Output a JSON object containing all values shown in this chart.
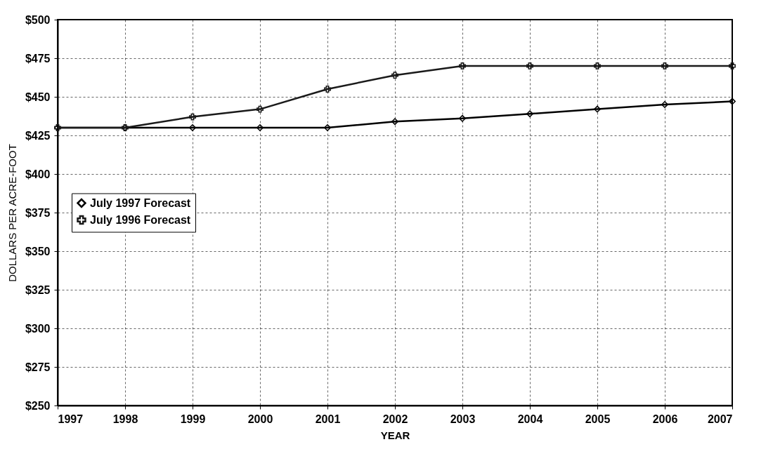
{
  "chart_data": {
    "type": "line",
    "xlabel": "YEAR",
    "ylabel": "DOLLARS PER ACRE-FOOT",
    "x": [
      1997,
      1998,
      1999,
      2000,
      2001,
      2002,
      2003,
      2004,
      2005,
      2006,
      2007
    ],
    "series": [
      {
        "name": "July 1997 Forecast",
        "color": "#000000",
        "marker": "diamond",
        "values": [
          430,
          430,
          430,
          430,
          430,
          434,
          436,
          439,
          442,
          445,
          447
        ]
      },
      {
        "name": "July 1996 Forecast",
        "color": "#1a1a1a",
        "marker": "cross",
        "values": [
          430,
          430,
          437,
          442,
          455,
          464,
          470,
          470,
          470,
          470,
          470
        ]
      }
    ],
    "xlim": [
      1997,
      2007
    ],
    "xticks": [
      1997,
      1998,
      1999,
      2000,
      2001,
      2002,
      2003,
      2004,
      2005,
      2006,
      2007
    ],
    "ylim": [
      250,
      500
    ],
    "yticks": [
      {
        "value": 250,
        "label": "$250"
      },
      {
        "value": 275,
        "label": "$275"
      },
      {
        "value": 300,
        "label": "$300"
      },
      {
        "value": 325,
        "label": "$325"
      },
      {
        "value": 350,
        "label": "$350"
      },
      {
        "value": 375,
        "label": "$375"
      },
      {
        "value": 400,
        "label": "$400"
      },
      {
        "value": 425,
        "label": "$425"
      },
      {
        "value": 450,
        "label": "$450"
      },
      {
        "value": 475,
        "label": "$475"
      },
      {
        "value": 500,
        "label": "$500"
      }
    ],
    "grid": true,
    "legend": "left",
    "line_style": "solid"
  }
}
